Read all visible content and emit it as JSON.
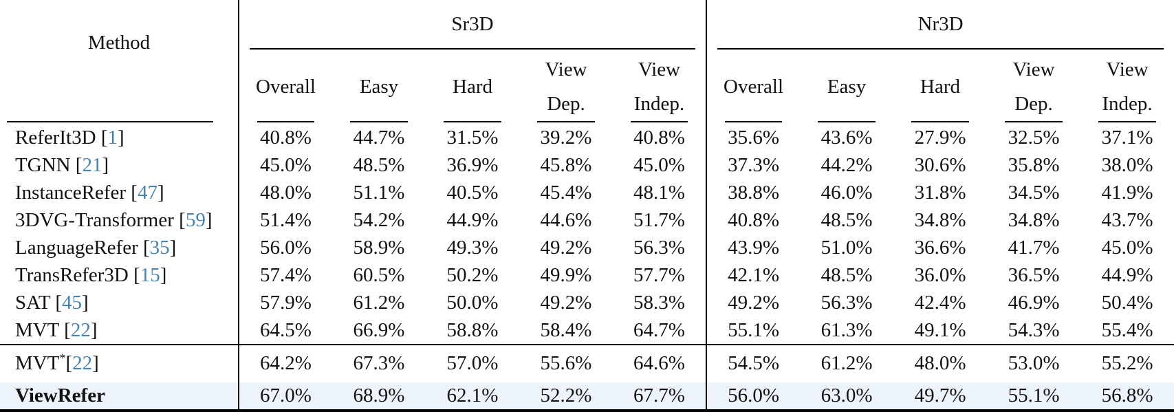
{
  "colors": {
    "citation_blue": "#4484b4",
    "highlight_row": "#edf3fb",
    "rule_black": "#000000"
  },
  "table": {
    "method_header": "Method",
    "group_headers": [
      {
        "label": "Sr3D"
      },
      {
        "label": "Nr3D"
      }
    ],
    "column_headers": [
      {
        "key": "overall",
        "line1": "Overall",
        "line2": ""
      },
      {
        "key": "easy",
        "line1": "Easy",
        "line2": ""
      },
      {
        "key": "hard",
        "line1": "Hard",
        "line2": ""
      },
      {
        "key": "view-dep",
        "line1": "View",
        "line2": "Dep."
      },
      {
        "key": "view-indep",
        "line1": "View",
        "line2": "Indep."
      }
    ],
    "rows": [
      {
        "method": "ReferIt3D",
        "sup": "",
        "cite": "1",
        "method_bold": false,
        "highlight": false,
        "separator_above": false,
        "cells": [
          {
            "v": "40.8%",
            "b": false
          },
          {
            "v": "44.7%",
            "b": false
          },
          {
            "v": "31.5%",
            "b": false
          },
          {
            "v": "39.2%",
            "b": false
          },
          {
            "v": "40.8%",
            "b": false
          },
          {
            "v": "35.6%",
            "b": false
          },
          {
            "v": "43.6%",
            "b": false
          },
          {
            "v": "27.9%",
            "b": false
          },
          {
            "v": "32.5%",
            "b": false
          },
          {
            "v": "37.1%",
            "b": false
          }
        ]
      },
      {
        "method": "TGNN",
        "sup": "",
        "cite": "21",
        "method_bold": false,
        "highlight": false,
        "separator_above": false,
        "cells": [
          {
            "v": "45.0%",
            "b": false
          },
          {
            "v": "48.5%",
            "b": false
          },
          {
            "v": "36.9%",
            "b": false
          },
          {
            "v": "45.8%",
            "b": false
          },
          {
            "v": "45.0%",
            "b": false
          },
          {
            "v": "37.3%",
            "b": false
          },
          {
            "v": "44.2%",
            "b": false
          },
          {
            "v": "30.6%",
            "b": false
          },
          {
            "v": "35.8%",
            "b": false
          },
          {
            "v": "38.0%",
            "b": false
          }
        ]
      },
      {
        "method": "InstanceRefer",
        "sup": "",
        "cite": "47",
        "method_bold": false,
        "highlight": false,
        "separator_above": false,
        "cells": [
          {
            "v": "48.0%",
            "b": false
          },
          {
            "v": "51.1%",
            "b": false
          },
          {
            "v": "40.5%",
            "b": false
          },
          {
            "v": "45.4%",
            "b": false
          },
          {
            "v": "48.1%",
            "b": false
          },
          {
            "v": "38.8%",
            "b": false
          },
          {
            "v": "46.0%",
            "b": false
          },
          {
            "v": "31.8%",
            "b": false
          },
          {
            "v": "34.5%",
            "b": false
          },
          {
            "v": "41.9%",
            "b": false
          }
        ]
      },
      {
        "method": "3DVG-Transformer",
        "sup": "",
        "cite": "59",
        "method_bold": false,
        "highlight": false,
        "separator_above": false,
        "cells": [
          {
            "v": "51.4%",
            "b": false
          },
          {
            "v": "54.2%",
            "b": false
          },
          {
            "v": "44.9%",
            "b": false
          },
          {
            "v": "44.6%",
            "b": false
          },
          {
            "v": "51.7%",
            "b": false
          },
          {
            "v": "40.8%",
            "b": false
          },
          {
            "v": "48.5%",
            "b": false
          },
          {
            "v": "34.8%",
            "b": false
          },
          {
            "v": "34.8%",
            "b": false
          },
          {
            "v": "43.7%",
            "b": false
          }
        ]
      },
      {
        "method": "LanguageRefer",
        "sup": "",
        "cite": "35",
        "method_bold": false,
        "highlight": false,
        "separator_above": false,
        "cells": [
          {
            "v": "56.0%",
            "b": false
          },
          {
            "v": "58.9%",
            "b": false
          },
          {
            "v": "49.3%",
            "b": false
          },
          {
            "v": "49.2%",
            "b": false
          },
          {
            "v": "56.3%",
            "b": false
          },
          {
            "v": "43.9%",
            "b": false
          },
          {
            "v": "51.0%",
            "b": false
          },
          {
            "v": "36.6%",
            "b": false
          },
          {
            "v": "41.7%",
            "b": false
          },
          {
            "v": "45.0%",
            "b": false
          }
        ]
      },
      {
        "method": "TransRefer3D",
        "sup": "",
        "cite": "15",
        "method_bold": false,
        "highlight": false,
        "separator_above": false,
        "cells": [
          {
            "v": "57.4%",
            "b": false
          },
          {
            "v": "60.5%",
            "b": false
          },
          {
            "v": "50.2%",
            "b": false
          },
          {
            "v": "49.9%",
            "b": false
          },
          {
            "v": "57.7%",
            "b": false
          },
          {
            "v": "42.1%",
            "b": false
          },
          {
            "v": "48.5%",
            "b": false
          },
          {
            "v": "36.0%",
            "b": false
          },
          {
            "v": "36.5%",
            "b": false
          },
          {
            "v": "44.9%",
            "b": false
          }
        ]
      },
      {
        "method": "SAT",
        "sup": "",
        "cite": "45",
        "method_bold": false,
        "highlight": false,
        "separator_above": false,
        "cells": [
          {
            "v": "57.9%",
            "b": false
          },
          {
            "v": "61.2%",
            "b": false
          },
          {
            "v": "50.0%",
            "b": false
          },
          {
            "v": "49.2%",
            "b": false
          },
          {
            "v": "58.3%",
            "b": false
          },
          {
            "v": "49.2%",
            "b": false
          },
          {
            "v": "56.3%",
            "b": false
          },
          {
            "v": "42.4%",
            "b": false
          },
          {
            "v": "46.9%",
            "b": false
          },
          {
            "v": "50.4%",
            "b": false
          }
        ]
      },
      {
        "method": "MVT",
        "sup": "",
        "cite": "22",
        "method_bold": false,
        "highlight": false,
        "separator_above": false,
        "cells": [
          {
            "v": "64.5%",
            "b": false
          },
          {
            "v": "66.9%",
            "b": false
          },
          {
            "v": "58.8%",
            "b": false
          },
          {
            "v": "58.4%",
            "b": false
          },
          {
            "v": "64.7%",
            "b": false
          },
          {
            "v": "55.1%",
            "b": false
          },
          {
            "v": "61.3%",
            "b": false
          },
          {
            "v": "49.1%",
            "b": false
          },
          {
            "v": "54.3%",
            "b": false
          },
          {
            "v": "55.4%",
            "b": false
          }
        ]
      },
      {
        "method": "MVT",
        "sup": "*",
        "cite": "22",
        "method_bold": false,
        "highlight": false,
        "separator_above": true,
        "cells": [
          {
            "v": "64.2%",
            "b": false
          },
          {
            "v": "67.3%",
            "b": false
          },
          {
            "v": "57.0%",
            "b": false
          },
          {
            "v": "55.6%",
            "b": true
          },
          {
            "v": "64.6%",
            "b": false
          },
          {
            "v": "54.5%",
            "b": false
          },
          {
            "v": "61.2%",
            "b": false
          },
          {
            "v": "48.0%",
            "b": false
          },
          {
            "v": "53.0%",
            "b": false
          },
          {
            "v": "55.2%",
            "b": false
          }
        ]
      },
      {
        "method": "ViewRefer",
        "sup": "",
        "cite": "",
        "method_bold": true,
        "highlight": true,
        "separator_above": false,
        "cells": [
          {
            "v": "67.0%",
            "b": true
          },
          {
            "v": "68.9%",
            "b": true
          },
          {
            "v": "62.1%",
            "b": true
          },
          {
            "v": "52.2%",
            "b": false
          },
          {
            "v": "67.7%",
            "b": true
          },
          {
            "v": "56.0%",
            "b": true
          },
          {
            "v": "63.0%",
            "b": true
          },
          {
            "v": "49.7%",
            "b": true
          },
          {
            "v": "55.1%",
            "b": true
          },
          {
            "v": "56.8%",
            "b": true
          }
        ]
      }
    ]
  }
}
